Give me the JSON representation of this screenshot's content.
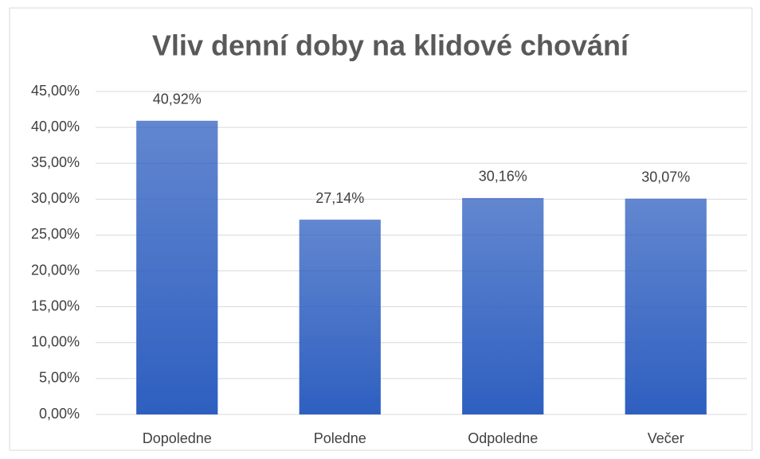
{
  "chart_data": {
    "type": "bar",
    "title": "Vliv denní doby na klidové chování",
    "categories": [
      "Dopoledne",
      "Poledne",
      "Odpoledne",
      "Večer"
    ],
    "values": [
      40.92,
      27.14,
      30.16,
      30.07
    ],
    "value_labels": [
      "40,92%",
      "27,14%",
      "30,16%",
      "30,07%"
    ],
    "color": "#2e5fc0",
    "ylim": [
      0,
      45
    ],
    "yticks": [
      {
        "value": 0,
        "label": "0,00%"
      },
      {
        "value": 5,
        "label": "5,00%"
      },
      {
        "value": 10,
        "label": "10,00%"
      },
      {
        "value": 15,
        "label": "15,00%"
      },
      {
        "value": 20,
        "label": "20,00%"
      },
      {
        "value": 25,
        "label": "25,00%"
      },
      {
        "value": 30,
        "label": "30,00%"
      },
      {
        "value": 35,
        "label": "35,00%"
      },
      {
        "value": 40,
        "label": "40,00%"
      },
      {
        "value": 45,
        "label": "45,00%"
      }
    ],
    "grid": true
  }
}
